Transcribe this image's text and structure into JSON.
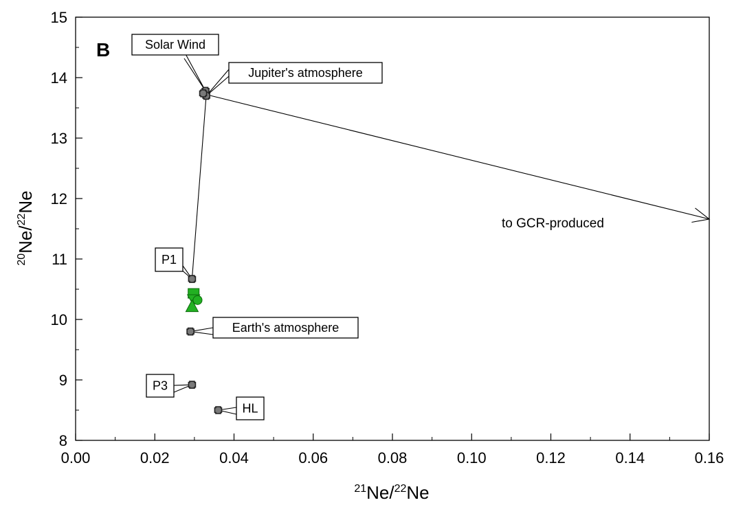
{
  "chart_data": {
    "type": "scatter",
    "panel_label": "B",
    "xlabel": {
      "sup1": "21",
      "base1": "Ne/",
      "sup2": "22",
      "base2": "Ne"
    },
    "ylabel": {
      "sup1": "20",
      "base1": "Ne/",
      "sup2": "22",
      "base2": "Ne"
    },
    "xlim": [
      0.0,
      0.16
    ],
    "ylim": [
      8,
      15
    ],
    "xticks": [
      0.0,
      0.02,
      0.04,
      0.06,
      0.08,
      0.1,
      0.12,
      0.14,
      0.16
    ],
    "xtick_labels": [
      "0.00",
      "0.02",
      "0.04",
      "0.06",
      "0.08",
      "0.10",
      "0.12",
      "0.14",
      "0.16"
    ],
    "yticks": [
      8,
      9,
      10,
      11,
      12,
      13,
      14,
      15
    ],
    "ytick_labels": [
      "8",
      "9",
      "10",
      "11",
      "12",
      "13",
      "14",
      "15"
    ],
    "grid": false,
    "components": [
      {
        "label": "Solar Wind",
        "x": 0.0328,
        "y": 13.78
      },
      {
        "label": "Jupiter's atmosphere",
        "x": 0.033,
        "y": 13.7
      },
      {
        "label": "P1",
        "x": 0.0294,
        "y": 10.67
      },
      {
        "label": "Earth's atmosphere",
        "x": 0.029,
        "y": 9.8
      },
      {
        "label": "P3",
        "x": 0.0294,
        "y": 8.92
      },
      {
        "label": "HL",
        "x": 0.036,
        "y": 8.5
      }
    ],
    "samples": [
      {
        "shape": "square",
        "x": 0.0298,
        "y": 10.42
      },
      {
        "shape": "triangle-down",
        "x": 0.0298,
        "y": 10.33
      },
      {
        "shape": "circle",
        "x": 0.0308,
        "y": 10.32
      },
      {
        "shape": "triangle-up",
        "x": 0.0294,
        "y": 10.22
      }
    ],
    "mixing_line": [
      {
        "x": 0.0294,
        "y": 10.67
      },
      {
        "x": 0.033,
        "y": 13.72
      }
    ],
    "gcr_arrow": {
      "label": "to GCR-produced",
      "from": {
        "x": 0.033,
        "y": 13.72
      },
      "to": {
        "x": 0.16,
        "y": 11.66
      }
    },
    "colors": {
      "component_marker": "#7a7a7a",
      "sample_marker": "#22b022",
      "line": "#000000"
    }
  }
}
